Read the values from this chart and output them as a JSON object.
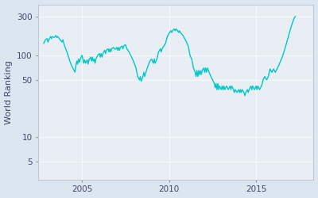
{
  "ylabel": "World Ranking",
  "line_color": "#00c8c8",
  "bg_color": "#e8eef4",
  "fig_color": "#dce6f0",
  "yticks": [
    5,
    10,
    50,
    100,
    300
  ],
  "xlim_start": 2002.5,
  "xlim_end": 2018.3,
  "ylim_bottom": 3,
  "ylim_top": 420,
  "xticks": [
    2005,
    2010,
    2015
  ],
  "approximate_data": [
    [
      2002.8,
      140
    ],
    [
      2002.9,
      155
    ],
    [
      2003.0,
      160
    ],
    [
      2003.05,
      145
    ],
    [
      2003.1,
      155
    ],
    [
      2003.2,
      170
    ],
    [
      2003.25,
      160
    ],
    [
      2003.3,
      170
    ],
    [
      2003.4,
      165
    ],
    [
      2003.5,
      175
    ],
    [
      2003.55,
      165
    ],
    [
      2003.6,
      170
    ],
    [
      2003.7,
      160
    ],
    [
      2003.8,
      150
    ],
    [
      2003.85,
      145
    ],
    [
      2003.9,
      155
    ],
    [
      2004.0,
      130
    ],
    [
      2004.1,
      115
    ],
    [
      2004.2,
      100
    ],
    [
      2004.3,
      85
    ],
    [
      2004.4,
      75
    ],
    [
      2004.5,
      68
    ],
    [
      2004.6,
      62
    ],
    [
      2004.65,
      75
    ],
    [
      2004.7,
      85
    ],
    [
      2004.75,
      78
    ],
    [
      2004.8,
      90
    ],
    [
      2004.85,
      82
    ],
    [
      2004.9,
      90
    ],
    [
      2005.0,
      100
    ],
    [
      2005.05,
      90
    ],
    [
      2005.1,
      80
    ],
    [
      2005.15,
      88
    ],
    [
      2005.2,
      80
    ],
    [
      2005.3,
      88
    ],
    [
      2005.35,
      78
    ],
    [
      2005.4,
      88
    ],
    [
      2005.5,
      95
    ],
    [
      2005.55,
      85
    ],
    [
      2005.6,
      95
    ],
    [
      2005.65,
      85
    ],
    [
      2005.7,
      90
    ],
    [
      2005.75,
      80
    ],
    [
      2005.8,
      90
    ],
    [
      2005.9,
      100
    ],
    [
      2006.0,
      105
    ],
    [
      2006.05,
      95
    ],
    [
      2006.1,
      105
    ],
    [
      2006.15,
      95
    ],
    [
      2006.2,
      105
    ],
    [
      2006.3,
      115
    ],
    [
      2006.35,
      105
    ],
    [
      2006.4,
      115
    ],
    [
      2006.5,
      120
    ],
    [
      2006.55,
      110
    ],
    [
      2006.6,
      120
    ],
    [
      2006.65,
      110
    ],
    [
      2006.7,
      120
    ],
    [
      2006.8,
      125
    ],
    [
      2006.9,
      118
    ],
    [
      2007.0,
      125
    ],
    [
      2007.05,
      115
    ],
    [
      2007.1,
      125
    ],
    [
      2007.15,
      115
    ],
    [
      2007.2,
      125
    ],
    [
      2007.3,
      130
    ],
    [
      2007.35,
      120
    ],
    [
      2007.4,
      130
    ],
    [
      2007.5,
      135
    ],
    [
      2007.55,
      125
    ],
    [
      2007.6,
      118
    ],
    [
      2007.7,
      110
    ],
    [
      2007.8,
      100
    ],
    [
      2007.9,
      90
    ],
    [
      2008.0,
      80
    ],
    [
      2008.1,
      70
    ],
    [
      2008.15,
      62
    ],
    [
      2008.2,
      55
    ],
    [
      2008.3,
      50
    ],
    [
      2008.35,
      55
    ],
    [
      2008.4,
      48
    ],
    [
      2008.5,
      55
    ],
    [
      2008.55,
      62
    ],
    [
      2008.6,
      55
    ],
    [
      2008.7,
      65
    ],
    [
      2008.8,
      75
    ],
    [
      2008.9,
      85
    ],
    [
      2009.0,
      90
    ],
    [
      2009.1,
      80
    ],
    [
      2009.15,
      90
    ],
    [
      2009.2,
      80
    ],
    [
      2009.3,
      90
    ],
    [
      2009.35,
      100
    ],
    [
      2009.4,
      110
    ],
    [
      2009.5,
      120
    ],
    [
      2009.55,
      110
    ],
    [
      2009.6,
      120
    ],
    [
      2009.7,
      130
    ],
    [
      2009.8,
      140
    ],
    [
      2009.85,
      155
    ],
    [
      2009.9,
      170
    ],
    [
      2010.0,
      185
    ],
    [
      2010.1,
      200
    ],
    [
      2010.15,
      190
    ],
    [
      2010.2,
      200
    ],
    [
      2010.3,
      210
    ],
    [
      2010.35,
      200
    ],
    [
      2010.4,
      210
    ],
    [
      2010.5,
      200
    ],
    [
      2010.55,
      190
    ],
    [
      2010.6,
      200
    ],
    [
      2010.65,
      190
    ],
    [
      2010.7,
      185
    ],
    [
      2010.8,
      175
    ],
    [
      2010.9,
      160
    ],
    [
      2011.0,
      145
    ],
    [
      2011.1,
      130
    ],
    [
      2011.15,
      115
    ],
    [
      2011.2,
      100
    ],
    [
      2011.3,
      90
    ],
    [
      2011.35,
      80
    ],
    [
      2011.4,
      70
    ],
    [
      2011.5,
      62
    ],
    [
      2011.55,
      55
    ],
    [
      2011.6,
      65
    ],
    [
      2011.65,
      55
    ],
    [
      2011.7,
      65
    ],
    [
      2011.75,
      58
    ],
    [
      2011.8,
      65
    ],
    [
      2011.85,
      58
    ],
    [
      2011.9,
      65
    ],
    [
      2012.0,
      70
    ],
    [
      2012.05,
      62
    ],
    [
      2012.1,
      70
    ],
    [
      2012.15,
      62
    ],
    [
      2012.2,
      70
    ],
    [
      2012.3,
      62
    ],
    [
      2012.4,
      55
    ],
    [
      2012.5,
      50
    ],
    [
      2012.6,
      45
    ],
    [
      2012.65,
      40
    ],
    [
      2012.7,
      45
    ],
    [
      2012.75,
      38
    ],
    [
      2012.8,
      45
    ],
    [
      2012.85,
      38
    ],
    [
      2012.9,
      42
    ],
    [
      2013.0,
      38
    ],
    [
      2013.05,
      42
    ],
    [
      2013.1,
      38
    ],
    [
      2013.15,
      42
    ],
    [
      2013.2,
      38
    ],
    [
      2013.3,
      42
    ],
    [
      2013.4,
      38
    ],
    [
      2013.5,
      42
    ],
    [
      2013.55,
      38
    ],
    [
      2013.6,
      42
    ],
    [
      2013.7,
      38
    ],
    [
      2013.75,
      35
    ],
    [
      2013.8,
      38
    ],
    [
      2013.9,
      35
    ],
    [
      2014.0,
      38
    ],
    [
      2014.05,
      35
    ],
    [
      2014.1,
      38
    ],
    [
      2014.15,
      35
    ],
    [
      2014.2,
      38
    ],
    [
      2014.3,
      35
    ],
    [
      2014.35,
      32
    ],
    [
      2014.4,
      35
    ],
    [
      2014.5,
      38
    ],
    [
      2014.55,
      35
    ],
    [
      2014.6,
      38
    ],
    [
      2014.7,
      42
    ],
    [
      2014.75,
      38
    ],
    [
      2014.8,
      42
    ],
    [
      2014.9,
      38
    ],
    [
      2015.0,
      42
    ],
    [
      2015.05,
      38
    ],
    [
      2015.1,
      42
    ],
    [
      2015.2,
      38
    ],
    [
      2015.3,
      42
    ],
    [
      2015.35,
      45
    ],
    [
      2015.4,
      50
    ],
    [
      2015.5,
      55
    ],
    [
      2015.6,
      50
    ],
    [
      2015.7,
      55
    ],
    [
      2015.75,
      62
    ],
    [
      2015.8,
      68
    ],
    [
      2015.9,
      62
    ],
    [
      2016.0,
      68
    ],
    [
      2016.1,
      62
    ],
    [
      2016.2,
      68
    ],
    [
      2016.3,
      75
    ],
    [
      2016.4,
      85
    ],
    [
      2016.5,
      95
    ],
    [
      2016.6,
      110
    ],
    [
      2016.7,
      130
    ],
    [
      2016.8,
      155
    ],
    [
      2016.9,
      185
    ],
    [
      2017.0,
      220
    ],
    [
      2017.1,
      255
    ],
    [
      2017.2,
      290
    ],
    [
      2017.25,
      298
    ]
  ]
}
